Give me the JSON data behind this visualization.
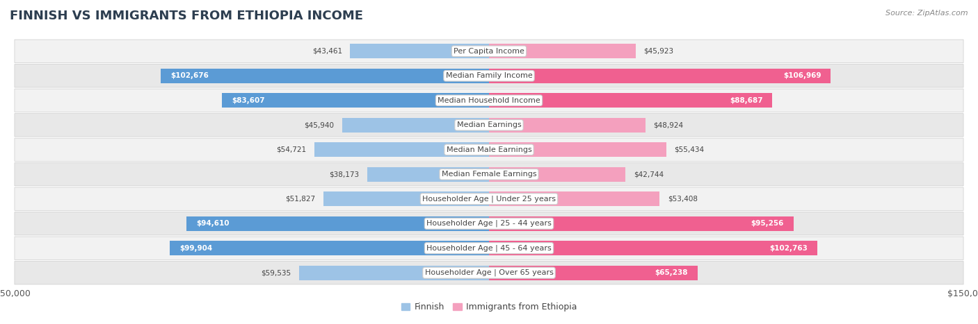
{
  "title": "FINNISH VS IMMIGRANTS FROM ETHIOPIA INCOME",
  "source": "Source: ZipAtlas.com",
  "categories": [
    "Per Capita Income",
    "Median Family Income",
    "Median Household Income",
    "Median Earnings",
    "Median Male Earnings",
    "Median Female Earnings",
    "Householder Age | Under 25 years",
    "Householder Age | 25 - 44 years",
    "Householder Age | 45 - 64 years",
    "Householder Age | Over 65 years"
  ],
  "finnish_values": [
    43461,
    102676,
    83607,
    45940,
    54721,
    38173,
    51827,
    94610,
    99904,
    59535
  ],
  "ethiopia_values": [
    45923,
    106969,
    88687,
    48924,
    55434,
    42744,
    53408,
    95256,
    102763,
    65238
  ],
  "finnish_color_dark": "#5b9bd5",
  "finnish_color_light": "#9dc3e6",
  "ethiopia_color_dark": "#f06090",
  "ethiopia_color_light": "#f4a0be",
  "finnish_label": "Finnish",
  "ethiopia_label": "Immigrants from Ethiopia",
  "axis_max": 150000,
  "background_color": "#ffffff",
  "row_colors": [
    "#f2f2f2",
    "#e8e8e8"
  ],
  "title_fontsize": 13,
  "label_fontsize": 8.0,
  "value_fontsize": 7.5,
  "legend_fontsize": 9,
  "value_threshold": 65000,
  "tick_fontsize": 9
}
